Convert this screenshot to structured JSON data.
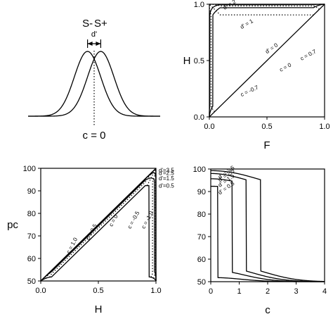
{
  "chart_data": [
    {
      "type": "line",
      "panel": "gaussians",
      "labels": {
        "noise": "S-",
        "signal": "S+",
        "dprime": "d'",
        "criterion": "c = 0"
      },
      "x": [
        -4.5,
        5.5
      ],
      "distributions": [
        {
          "name": "S-",
          "mean": 0,
          "sd": 1
        },
        {
          "name": "S+",
          "mean": 1,
          "sd": 1
        }
      ],
      "criterion": 0.5
    },
    {
      "type": "line",
      "panel": "roc",
      "xlabel": "F",
      "ylabel": "H",
      "xlim": [
        0,
        1
      ],
      "ylim": [
        0,
        1
      ],
      "xticks": [
        "0.0",
        "0.5",
        "1.0"
      ],
      "yticks": [
        "0.0",
        "0.5",
        "1.0"
      ],
      "iso_dprime": [
        0,
        1,
        2
      ],
      "iso_criterion": [
        -0.7,
        0,
        0.7
      ],
      "labels": {
        "d2": "d' = 2",
        "d1": "d' = 1",
        "d0": "d' = 0",
        "c07": "c = 0.7",
        "c0": "c = 0",
        "cm07": "c = -0.7"
      }
    },
    {
      "type": "line",
      "panel": "pc-vs-h",
      "xlabel": "H",
      "ylabel": "pc",
      "xlim": [
        0,
        1
      ],
      "ylim": [
        50,
        100
      ],
      "xticks": [
        "0.0",
        "0.5",
        "1.0"
      ],
      "yticks": [
        "50",
        "60",
        "70",
        "80",
        "90",
        "100"
      ],
      "iso_dprime": [
        0.5,
        1.5,
        2.5,
        3.5
      ],
      "iso_criterion": [
        1.0,
        0.5,
        0,
        -0.5,
        -1.0
      ],
      "right_labels": [
        "d'=3.5",
        "d'=2.5",
        "d'=1.5",
        "d'=0.5"
      ],
      "c_labels": [
        "c = 1.0",
        "c = 0.5",
        "c = 0",
        "c = -0.5",
        "c = -1.0"
      ]
    },
    {
      "type": "line",
      "panel": "pc-vs-c",
      "xlabel": "c",
      "ylabel": "",
      "xlim": [
        0,
        4
      ],
      "ylim": [
        50,
        100
      ],
      "xticks": [
        "0",
        "1",
        "2",
        "3",
        "4"
      ],
      "yticks": [
        "50",
        "60",
        "70",
        "80",
        "90",
        "100"
      ],
      "series": [
        {
          "name": "d' = 3.5",
          "dprime": 3.5
        },
        {
          "name": "d' = 2.5",
          "dprime": 2.5
        },
        {
          "name": "d' = 1.5",
          "dprime": 1.5
        },
        {
          "name": "d' = 0.5",
          "dprime": 0.5
        }
      ]
    }
  ]
}
